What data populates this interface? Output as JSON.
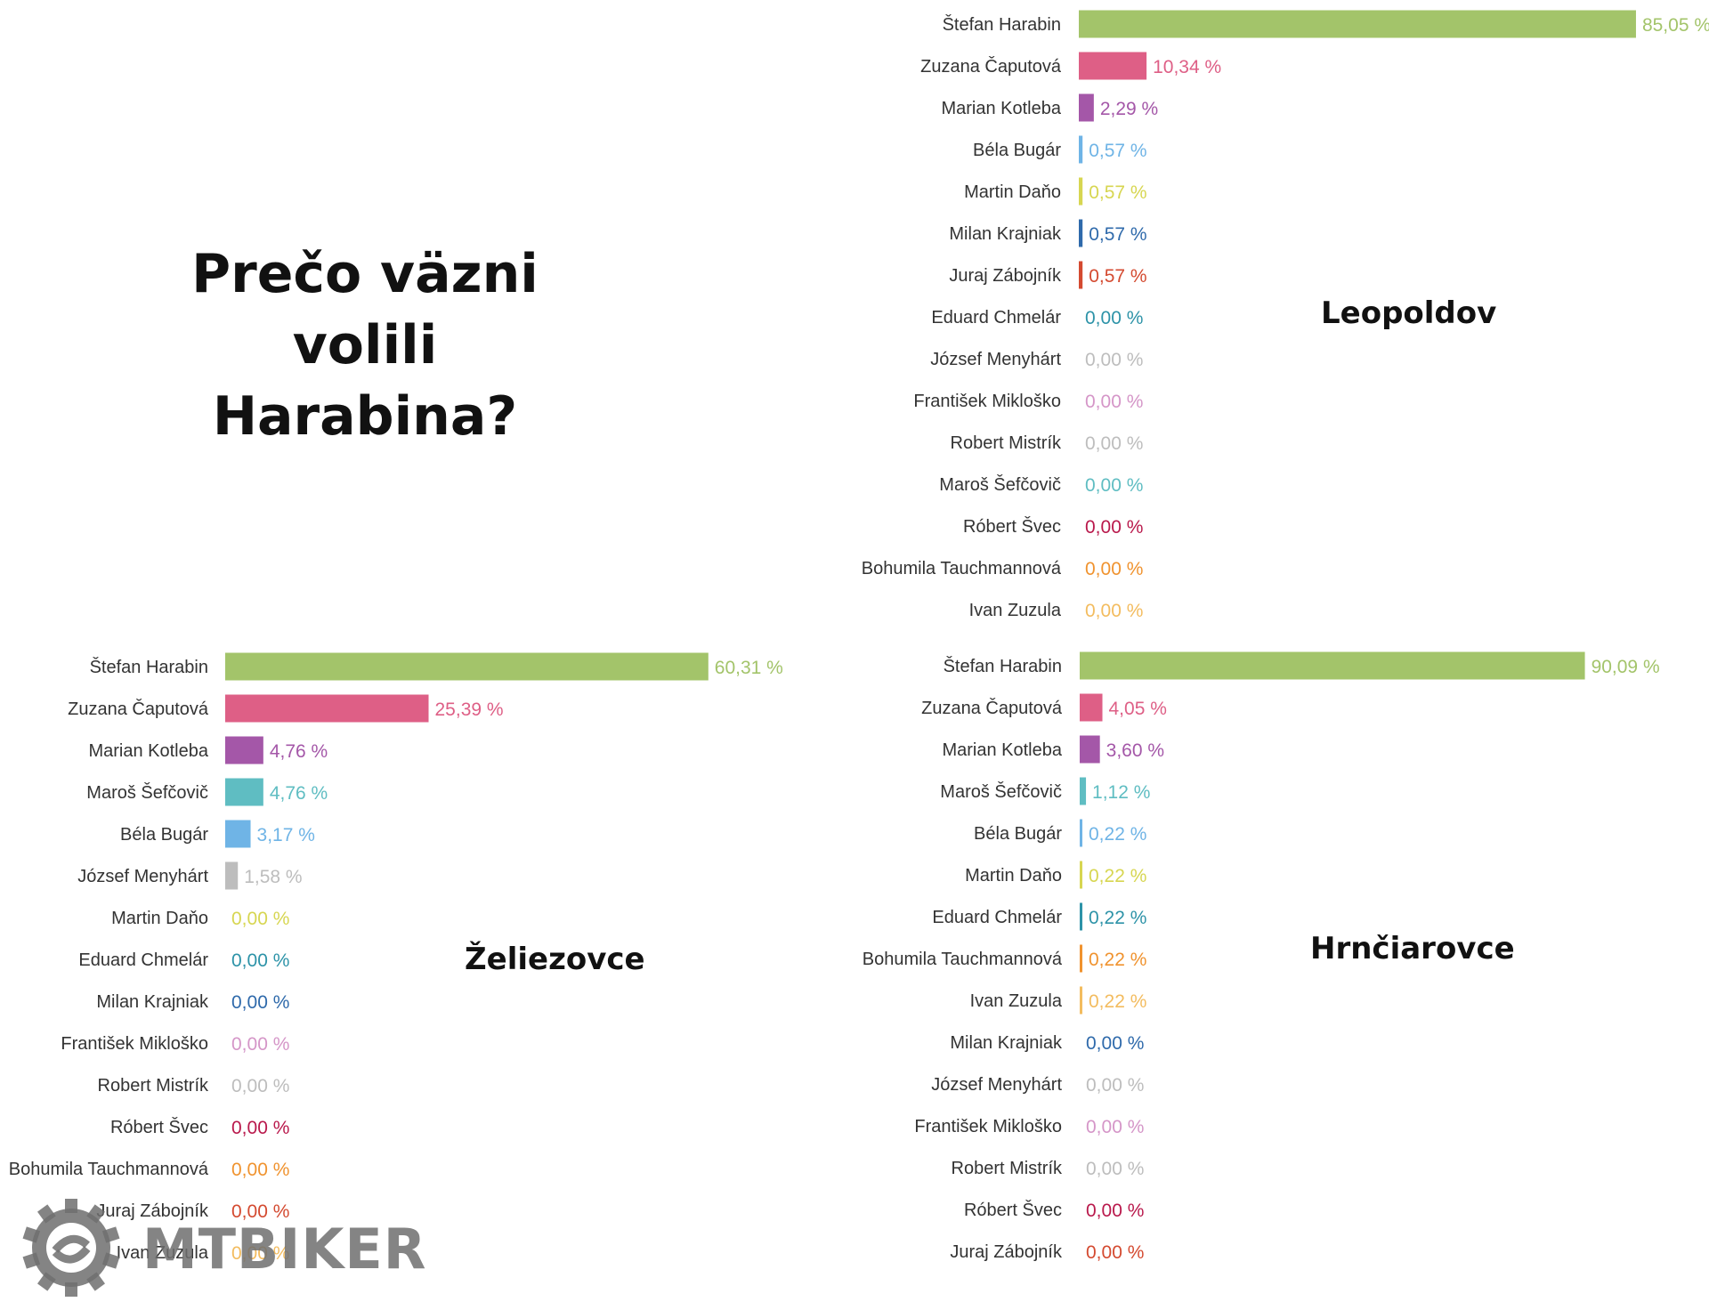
{
  "headline": {
    "line1": "Prečo väzni volili",
    "line2": "Harabina?"
  },
  "logo": {
    "text": "MTBIKER"
  },
  "colors": {
    "Štefan Harabin": "#a3c46a",
    "Zuzana Čaputová": "#de5f86",
    "Marian Kotleba": "#a457a8",
    "Maroš Šefčovič": "#5fbdc2",
    "Béla Bugár": "#6fb4e6",
    "József Menyhárt": "#bdbdbd",
    "Martin Daňo": "#d7d651",
    "Milan Krajniak": "#2f6aab",
    "Juraj Zábojník": "#d44a30",
    "Eduard Chmelár": "#2d93a8",
    "František Mikloško": "#d596c8",
    "Robert Mistrík": "#bdbdbd",
    "Róbert Švec": "#b9194c",
    "Bohumila Tauchmannová": "#f0932f",
    "Ivan Zuzula": "#f3bc5f"
  },
  "chart_data": [
    {
      "type": "bar",
      "title": "Leopoldov",
      "categories": [
        "Štefan Harabin",
        "Zuzana Čaputová",
        "Marian Kotleba",
        "Béla Bugár",
        "Martin Daňo",
        "Milan Krajniak",
        "Juraj Zábojník",
        "Eduard Chmelár",
        "József Menyhárt",
        "František Mikloško",
        "Robert Mistrík",
        "Maroš Šefčovič",
        "Róbert Švec",
        "Bohumila Tauchmannová",
        "Ivan Zuzula"
      ],
      "values": [
        85.05,
        10.34,
        2.29,
        0.57,
        0.57,
        0.57,
        0.57,
        0.0,
        0.0,
        0.0,
        0.0,
        0.0,
        0.0,
        0.0,
        0.0
      ],
      "labels": [
        "85,05 %",
        "10,34 %",
        "2,29 %",
        "0,57 %",
        "0,57 %",
        "0,57 %",
        "0,57 %",
        "0,00 %",
        "0,00 %",
        "0,00 %",
        "0,00 %",
        "0,00 %",
        "0,00 %",
        "0,00 %",
        "0,00 %"
      ]
    },
    {
      "type": "bar",
      "title": "Želiezovce",
      "categories": [
        "Štefan Harabin",
        "Zuzana Čaputová",
        "Marian Kotleba",
        "Maroš Šefčovič",
        "Béla Bugár",
        "József Menyhárt",
        "Martin Daňo",
        "Eduard Chmelár",
        "Milan Krajniak",
        "František Mikloško",
        "Robert Mistrík",
        "Róbert Švec",
        "Bohumila Tauchmannová",
        "Juraj Zábojník",
        "Ivan Zuzula"
      ],
      "values": [
        60.31,
        25.39,
        4.76,
        4.76,
        3.17,
        1.58,
        0.0,
        0.0,
        0.0,
        0.0,
        0.0,
        0.0,
        0.0,
        0.0,
        0.0
      ],
      "labels": [
        "60,31 %",
        "25,39 %",
        "4,76 %",
        "4,76 %",
        "3,17 %",
        "1,58 %",
        "0,00 %",
        "0,00 %",
        "0,00 %",
        "0,00 %",
        "0,00 %",
        "0,00 %",
        "0,00 %",
        "0,00 %",
        "0,00 %"
      ]
    },
    {
      "type": "bar",
      "title": "Hrnčiarovce",
      "categories": [
        "Štefan Harabin",
        "Zuzana Čaputová",
        "Marian Kotleba",
        "Maroš Šefčovič",
        "Béla Bugár",
        "Martin Daňo",
        "Eduard Chmelár",
        "Bohumila Tauchmannová",
        "Ivan Zuzula",
        "Milan Krajniak",
        "József Menyhárt",
        "František Mikloško",
        "Robert Mistrík",
        "Róbert Švec",
        "Juraj Zábojník"
      ],
      "values": [
        90.09,
        4.05,
        3.6,
        1.12,
        0.22,
        0.22,
        0.22,
        0.22,
        0.22,
        0.0,
        0.0,
        0.0,
        0.0,
        0.0,
        0.0
      ],
      "labels": [
        "90,09 %",
        "4,05 %",
        "3,60 %",
        "1,12 %",
        "0,22 %",
        "0,22 %",
        "0,22 %",
        "0,22 %",
        "0,22 %",
        "0,00 %",
        "0,00 %",
        "0,00 %",
        "0,00 %",
        "0,00 %",
        "0,00 %"
      ]
    }
  ]
}
